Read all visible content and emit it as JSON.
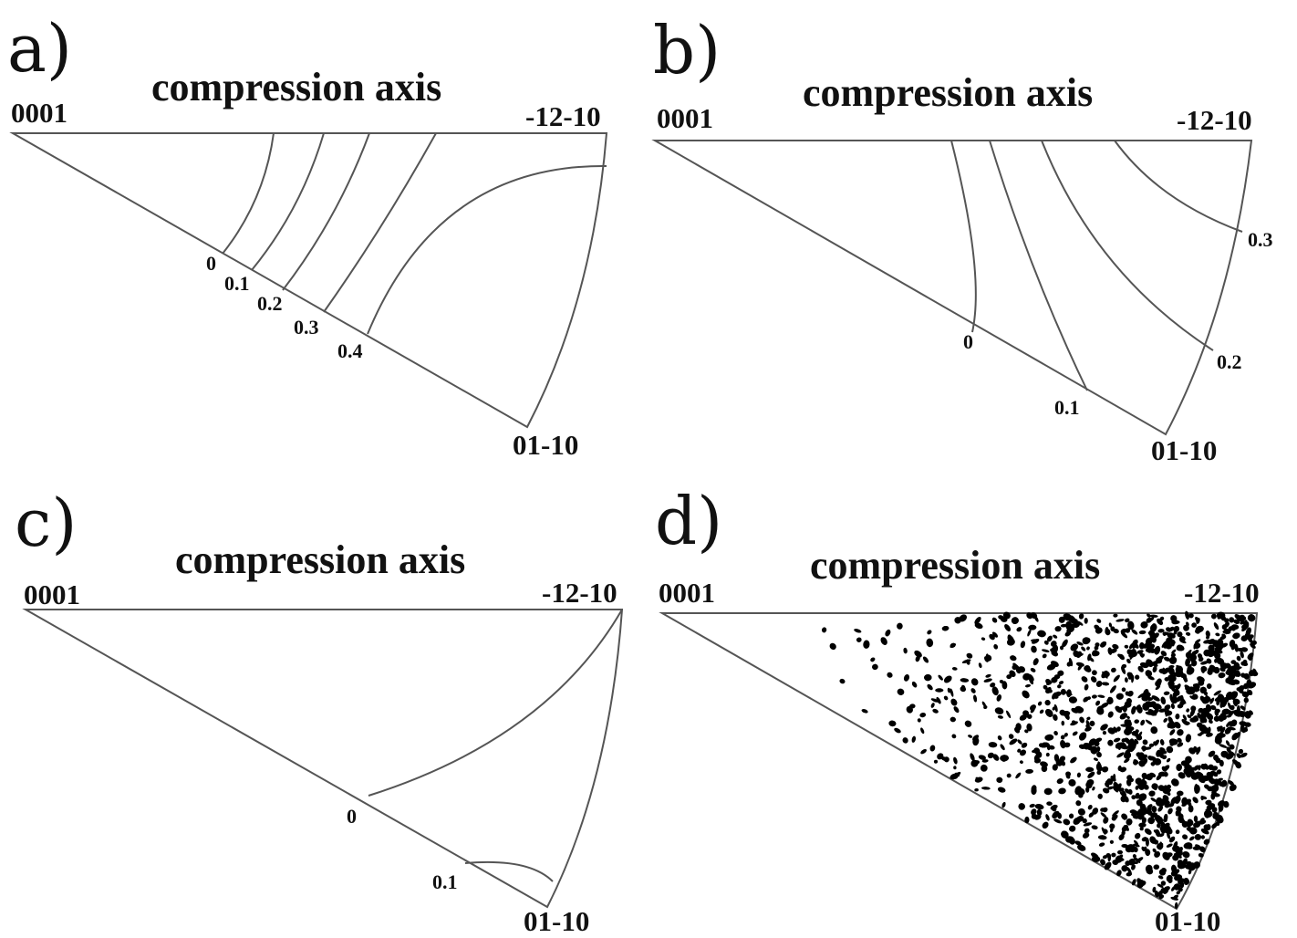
{
  "panels": [
    {
      "letter": "a)",
      "title": "compression axis",
      "corners": {
        "top_left": "0001",
        "top_right": "-12-10",
        "bottom": "01-10"
      },
      "contours": [
        "0",
        "0.1",
        "0.2",
        "0.3",
        "0.4"
      ]
    },
    {
      "letter": "b)",
      "title": "compression axis",
      "corners": {
        "top_left": "0001",
        "top_right": "-12-10",
        "bottom": "01-10"
      },
      "contours": [
        "0",
        "0.1",
        "0.2",
        "0.3"
      ]
    },
    {
      "letter": "c)",
      "title": "compression axis",
      "corners": {
        "top_left": "0001",
        "top_right": "-12-10",
        "bottom": "01-10"
      },
      "contours": [
        "0",
        "0.1"
      ]
    },
    {
      "letter": "d)",
      "title": "compression axis",
      "corners": {
        "top_left": "0001",
        "top_right": "-12-10",
        "bottom": "01-10"
      },
      "contours": []
    }
  ],
  "colors": {
    "line": "#555555",
    "text": "#111111",
    "dots": "#000000"
  }
}
